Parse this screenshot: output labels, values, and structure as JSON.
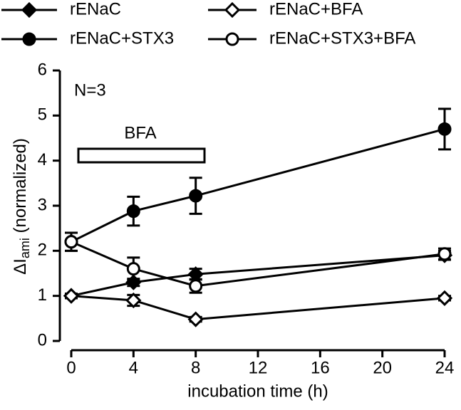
{
  "chart_data": {
    "type": "line",
    "annotations": [
      "N=3",
      "BFA"
    ],
    "x_label": "incubation time (h)",
    "y_label": {
      "main": "ΔI",
      "sub": "ami",
      "rest": " (normalized)"
    },
    "x": [
      0,
      4,
      8,
      24
    ],
    "xlim": [
      0,
      24
    ],
    "xticks": [
      0,
      4,
      8,
      12,
      16,
      20,
      24
    ],
    "ylim": [
      0,
      6
    ],
    "yticks": [
      0,
      1,
      2,
      3,
      4,
      5,
      6
    ],
    "series": [
      {
        "name": "rENaC",
        "color": "#000000",
        "marker": "diamond",
        "filled": true,
        "values": [
          1.0,
          1.3,
          1.48,
          1.9
        ],
        "errors": [
          0.05,
          0.08,
          0.12,
          0.1
        ]
      },
      {
        "name": "rENaC+STX3",
        "color": "#000000",
        "marker": "circle",
        "filled": true,
        "values": [
          2.2,
          2.88,
          3.22,
          4.7
        ],
        "errors": [
          0.2,
          0.32,
          0.4,
          0.45
        ]
      },
      {
        "name": "rENaC+BFA",
        "color": "#000000",
        "marker": "diamond",
        "filled": false,
        "values": [
          1.0,
          0.9,
          0.48,
          0.95
        ],
        "errors": [
          0.05,
          0.12,
          0.05,
          0.05
        ]
      },
      {
        "name": "rENaC+STX3+BFA",
        "color": "#000000",
        "marker": "circle",
        "filled": false,
        "values": [
          2.2,
          1.6,
          1.22,
          1.93
        ],
        "errors": [
          0.2,
          0.25,
          0.15,
          0.12
        ]
      }
    ]
  }
}
